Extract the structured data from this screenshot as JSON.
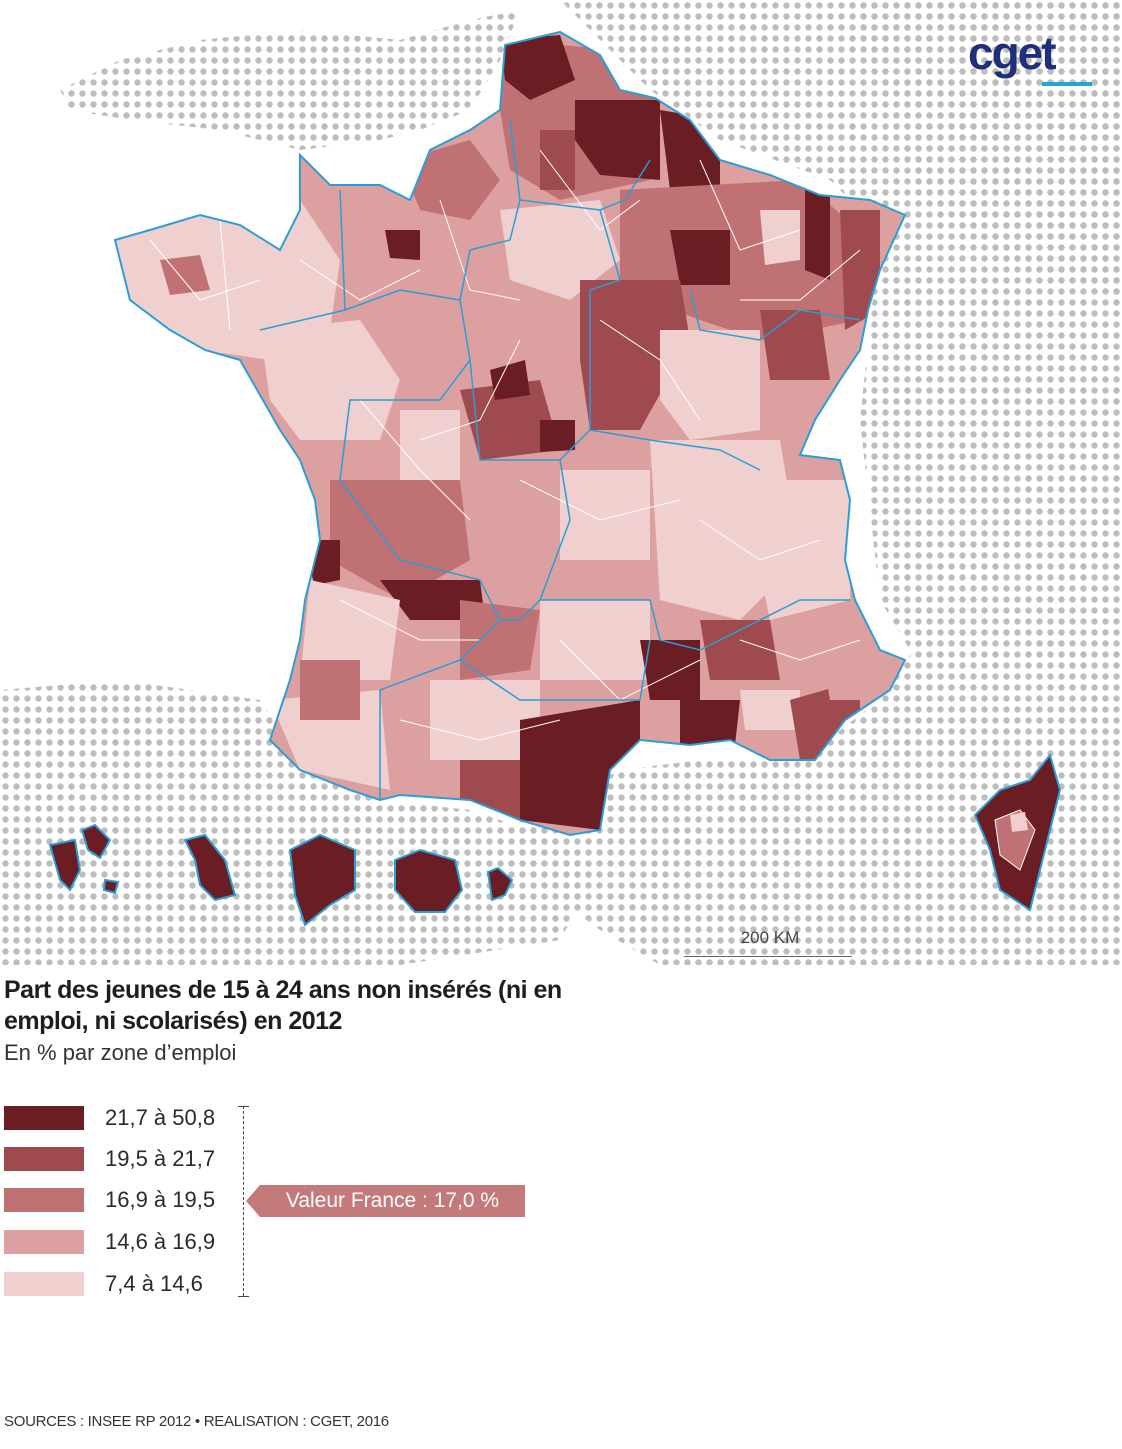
{
  "logo": {
    "text": "cget"
  },
  "map": {
    "scale_label": "200 KM",
    "colors": {
      "sea_dots": "#bdbdbd",
      "region_border": "#2a9ed6",
      "inner_border": "#ffffff"
    }
  },
  "title": "Part des jeunes de 15 à 24 ans non insérés (ni en emploi, ni scolarisés) en 2012",
  "subtitle": "En % par zone d’emploi",
  "legend": {
    "classes": [
      {
        "label": "21,7 à 50,8",
        "color": "#6b1d24"
      },
      {
        "label": "19,5 à 21,7",
        "color": "#9e4a4e"
      },
      {
        "label": "16,9 à 19,5",
        "color": "#c07173"
      },
      {
        "label": "14,6 à 16,9",
        "color": "#dda0a0"
      },
      {
        "label": "7,4 à 14,6",
        "color": "#f0d0cf"
      }
    ],
    "france_value": "Valeur France : 17,0 %"
  },
  "sources": "SOURCES : INSEE RP 2012 • REALISATION : CGET, 2016"
}
